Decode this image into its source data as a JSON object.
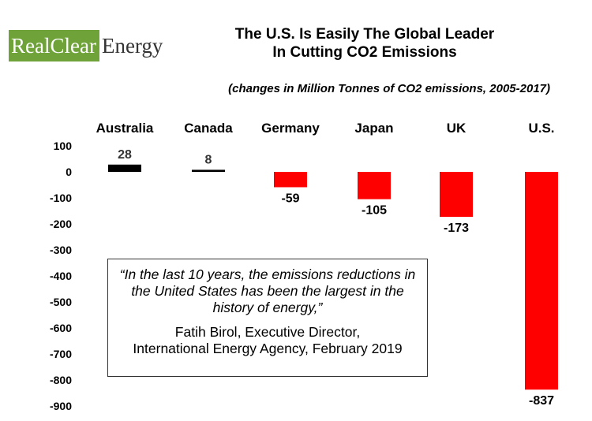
{
  "logo": {
    "part1": "RealClear",
    "part2": "Energy",
    "colors": {
      "green": "#6fa33a",
      "dark_text": "#333333"
    }
  },
  "title_line1": "The U.S. Is Easily The Global Leader",
  "title_line2": "In Cutting CO2 Emissions",
  "subtitle": "(changes in Million Tonnes of CO2 emissions, 2005-2017)",
  "quote": {
    "text": "“In the last 10 years, the emissions reductions in the United States has been the largest in the history of energy,”",
    "attribution_line1": "Fatih Birol, Executive Director,",
    "attribution_line2": "International Energy Agency, February 2019"
  },
  "chart_data": {
    "type": "bar",
    "title": "The U.S. Is Easily The Global Leader In Cutting CO2 Emissions",
    "subtitle": "(changes in Million Tonnes of CO2 emissions, 2005-2017)",
    "categories": [
      "Australia",
      "Canada",
      "Germany",
      "Japan",
      "UK",
      "U.S."
    ],
    "values": [
      28,
      8,
      -59,
      -105,
      -173,
      -837
    ],
    "data_labels": [
      "28",
      "8",
      "-59",
      "-105",
      "-173",
      "-837"
    ],
    "y_ticks": [
      "100",
      "0",
      "-100",
      "-200",
      "-300",
      "-400",
      "-500",
      "-600",
      "-700",
      "-800",
      "-900"
    ],
    "ylim": [
      -900,
      100
    ],
    "category_axis_position": "top",
    "grid": false,
    "legend": "none",
    "colors": {
      "positive": "#000000",
      "negative": "#ff0000"
    }
  }
}
